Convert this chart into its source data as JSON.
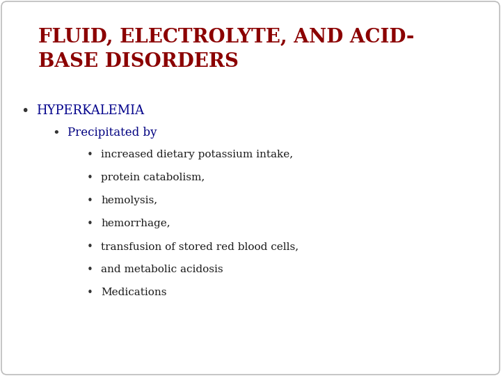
{
  "title_line1": "FLUID, ELECTROLYTE, AND ACID-",
  "title_line2": "BASE DISORDERS",
  "title_color": "#8B0000",
  "background_color": "#FFFFFF",
  "border_color": "#BBBBBB",
  "level1_bullet": "HYPERKALEMIA",
  "level1_color": "#00008B",
  "level2_bullet": "Precipitated by",
  "level2_color": "#000080",
  "level3_items": [
    "increased dietary potassium intake,",
    "protein catabolism,",
    "hemolysis,",
    "hemorrhage,",
    "transfusion of stored red blood cells,",
    "and metabolic acidosis",
    "Medications"
  ],
  "level3_color": "#1a1a1a",
  "title_fontsize": 20,
  "level1_fontsize": 13,
  "level2_fontsize": 12,
  "level3_fontsize": 11
}
